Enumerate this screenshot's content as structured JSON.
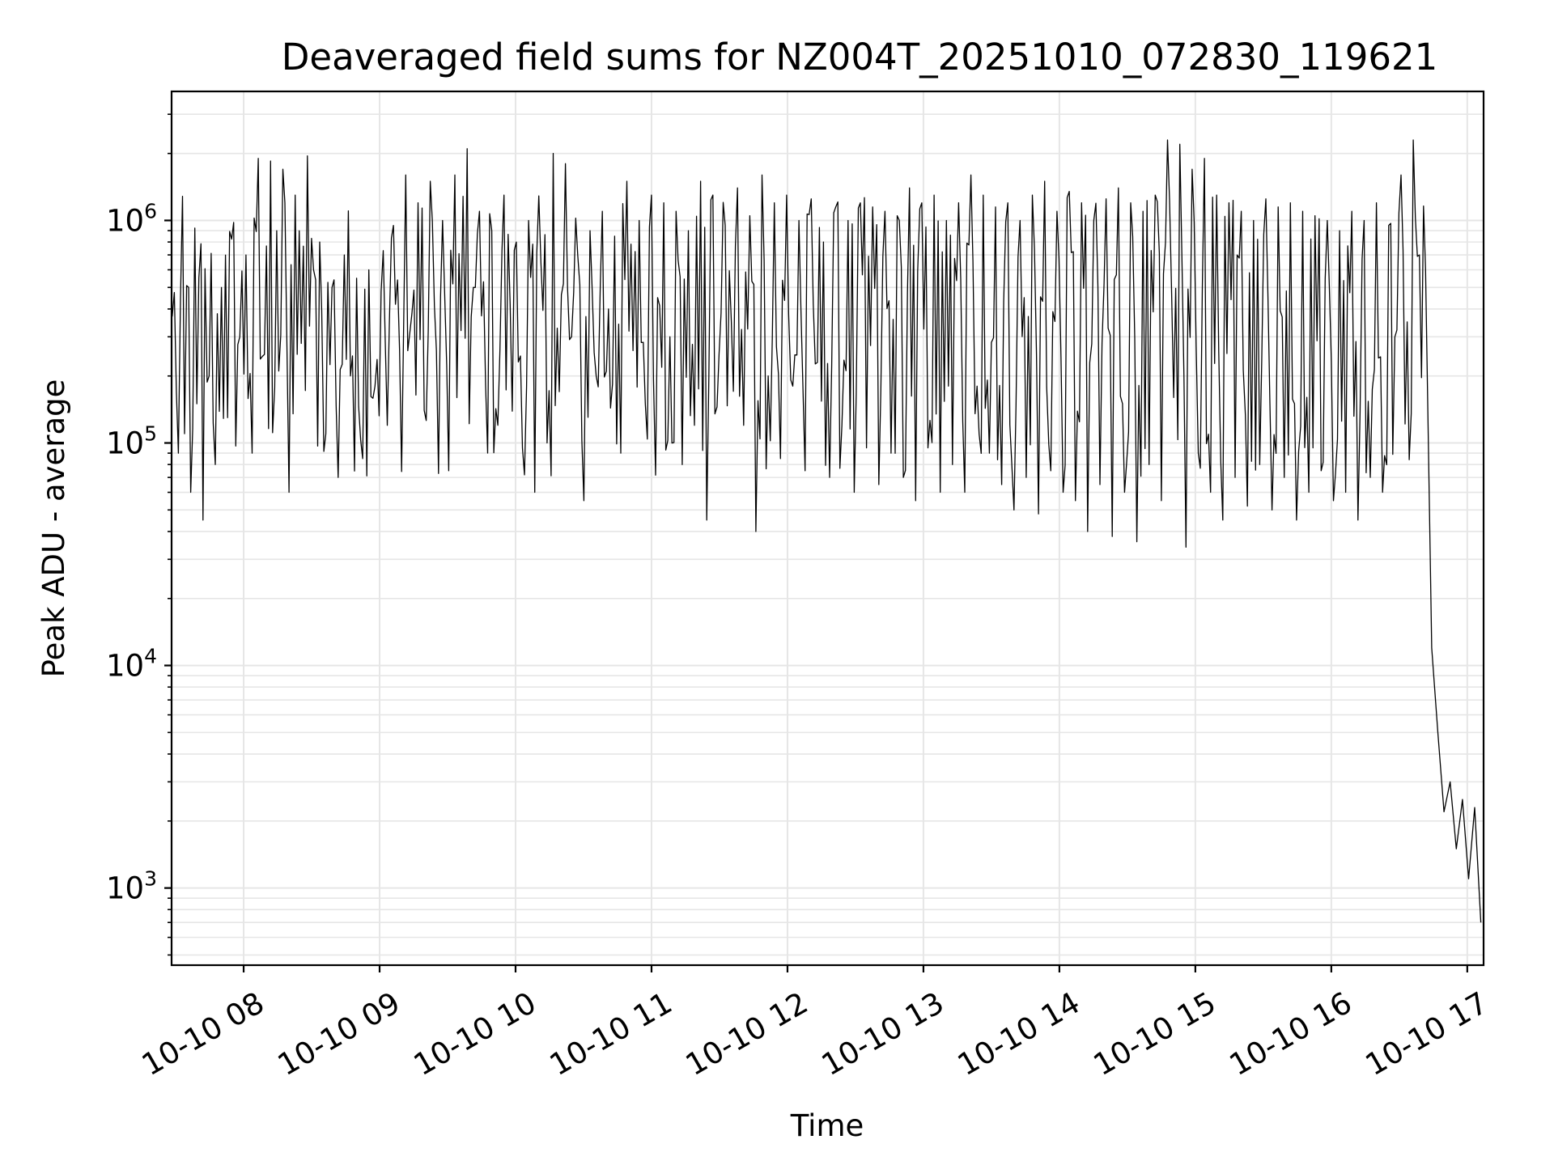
{
  "chart_data": {
    "type": "line",
    "title": "Deaveraged field sums for NZ004T_20251010_072830_119621",
    "xlabel": "Time",
    "ylabel": "Peak ADU - average",
    "yscale": "log",
    "grid": true,
    "line_color": "#000000",
    "grid_color": "#e6e6e6",
    "xlim_hours": [
      7.47,
      17.12
    ],
    "ylim": [
      450,
      3800000
    ],
    "x_ticks": [
      {
        "hour": 8,
        "label": "10-10 08"
      },
      {
        "hour": 9,
        "label": "10-10 09"
      },
      {
        "hour": 10,
        "label": "10-10 10"
      },
      {
        "hour": 11,
        "label": "10-10 11"
      },
      {
        "hour": 12,
        "label": "10-10 12"
      },
      {
        "hour": 13,
        "label": "10-10 13"
      },
      {
        "hour": 14,
        "label": "10-10 14"
      },
      {
        "hour": 15,
        "label": "10-10 15"
      },
      {
        "hour": 16,
        "label": "10-10 16"
      },
      {
        "hour": 17,
        "label": "10-10 17"
      }
    ],
    "y_ticks": [
      {
        "value": 1000,
        "base": "10",
        "exp": "3"
      },
      {
        "value": 10000,
        "base": "10",
        "exp": "4"
      },
      {
        "value": 100000,
        "base": "10",
        "exp": "5"
      },
      {
        "value": 1000000,
        "base": "10",
        "exp": "6"
      }
    ],
    "series": [
      {
        "name": "Peak ADU - average",
        "description": "dense noisy trace, approx 1 sample per minute",
        "x_start_hour": 7.475,
        "x_end_hour": 17.1,
        "values": [
          370000,
          90000,
          110000,
          60000,
          150000,
          45000,
          200000,
          80000,
          500000,
          130000,
          980000,
          300000,
          700000,
          90000,
          1900000,
          250000,
          1850000,
          900000,
          1700000,
          60000,
          1300000,
          280000,
          1950000,
          600000,
          800000,
          110000,
          500000,
          70000,
          700000,
          200000,
          550000,
          85000,
          600000,
          180000,
          480000,
          120000,
          950000,
          260000,
          1600000,
          380000,
          1200000,
          140000,
          1500000,
          260000,
          1000000,
          75000,
          1600000,
          320000,
          2100000,
          500000,
          1100000,
          180000,
          900000,
          120000,
          1300000,
          420000,
          800000,
          95000,
          1000000,
          60000,
          650000,
          100000,
          2000000,
          170000,
          1800000,
          300000,
          700000,
          55000,
          900000,
          200000,
          1100000,
          400000,
          850000,
          90000,
          1500000,
          260000,
          1000000,
          150000,
          1300000,
          450000,
          1200000,
          300000,
          1100000,
          80000,
          900000,
          120000,
          1500000,
          45000,
          1300000,
          250000,
          950000,
          350000,
          1400000,
          120000,
          1050000,
          40000,
          1600000,
          200000,
          1200000,
          85000,
          1300000,
          180000,
          1000000,
          75000,
          1250000,
          230000,
          800000,
          70000,
          1150000,
          120000,
          1000000,
          60000,
          1200000,
          95000,
          1150000,
          65000,
          1100000,
          90000,
          1050000,
          70000,
          1400000,
          55000,
          1200000,
          95000,
          1300000,
          60000,
          1000000,
          80000,
          1200000,
          60000,
          1600000,
          180000,
          1300000,
          90000,
          1150000,
          65000,
          1200000,
          50000,
          1000000,
          70000,
          1300000,
          48000,
          1500000,
          75000,
          1100000,
          60000,
          1350000,
          55000,
          1200000,
          40000,
          1000000,
          65000,
          1250000,
          38000,
          1400000,
          60000,
          1200000,
          36000,
          1100000,
          80000,
          1300000,
          55000,
          2300000,
          160000,
          2200000,
          34000,
          1700000,
          90000,
          1900000,
          60000,
          1300000,
          45000,
          1200000,
          70000,
          1100000,
          52000,
          1000000,
          80000,
          1250000,
          50000,
          1150000,
          70000,
          1200000,
          45000,
          1100000,
          60000,
          1050000,
          75000,
          1000000,
          55000,
          900000,
          60000,
          1100000,
          45000,
          1000000,
          70000,
          1200000,
          60000,
          950000,
          300000,
          1600000,
          350000,
          2300000,
          700000,
          600000,
          12000,
          5000,
          2200,
          3000,
          1500,
          2500,
          1100,
          2300,
          700
        ]
      }
    ]
  }
}
